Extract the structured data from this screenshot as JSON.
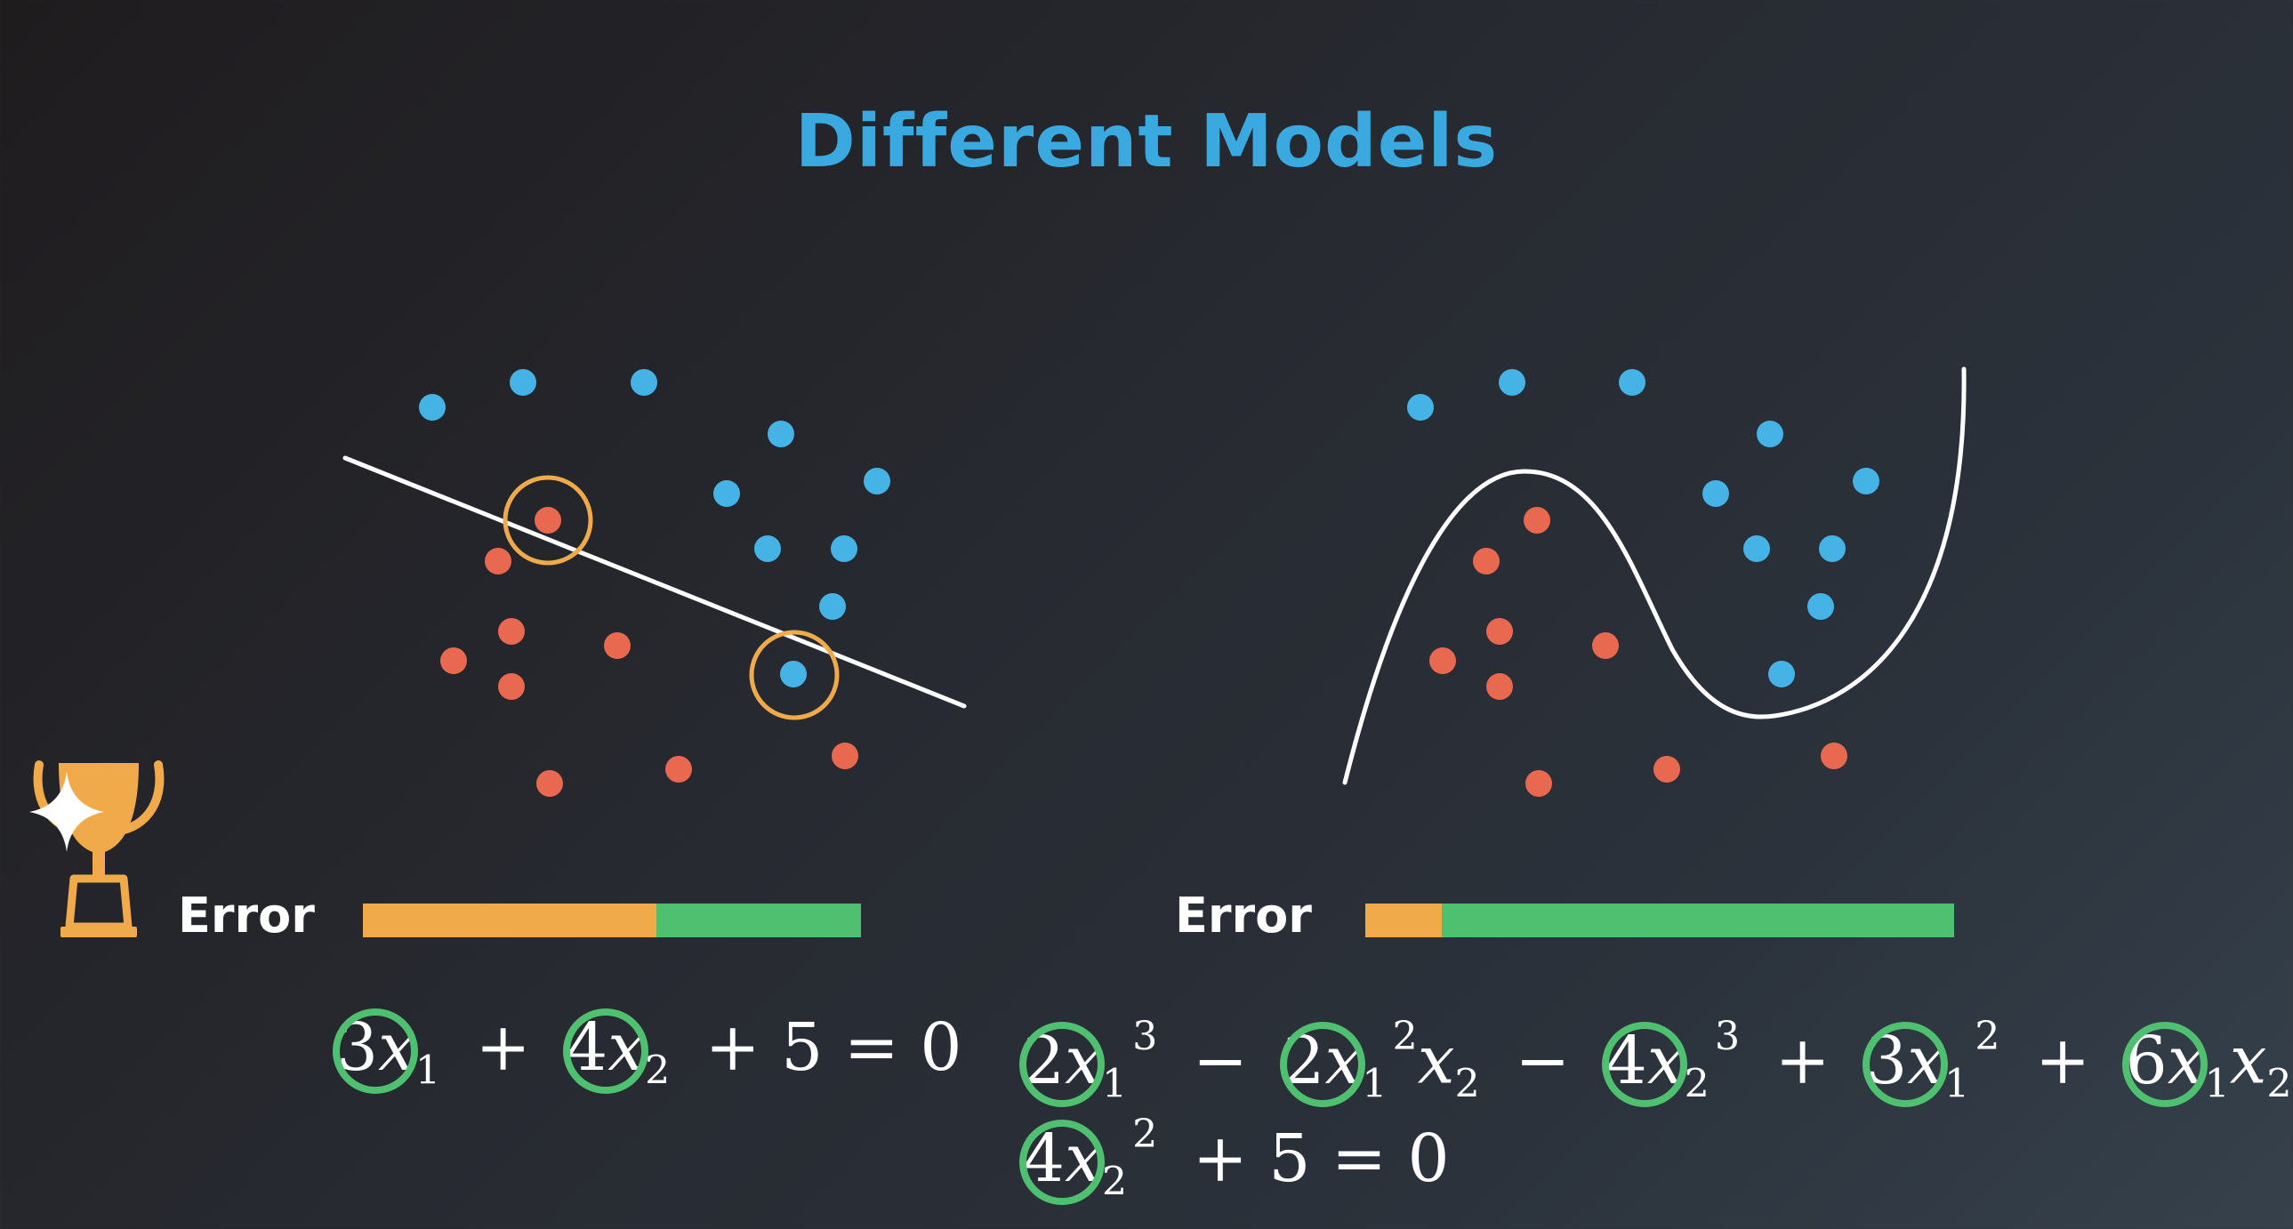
{
  "title": "Different Models",
  "colors": {
    "title": "#3aa9e0",
    "blue_point": "#45b3e6",
    "red_point": "#e8694f",
    "highlight": "#f0aa4a",
    "error_orange": "#f0aa4a",
    "error_green": "#4fbf70",
    "coefficient_ring": "#4fbf70",
    "boundary": "#ffffff"
  },
  "icons": {
    "trophy": "trophy-icon",
    "sparkle": "sparkle-icon"
  },
  "models": [
    {
      "name": "linear",
      "error_label": "Error",
      "error_fraction": 0.59,
      "equation": {
        "c1": "3",
        "v1": "x",
        "s1": "1",
        "op1": "+",
        "c2": "4",
        "v2": "x",
        "s2": "2",
        "tail": "+ 5 = 0"
      }
    },
    {
      "name": "polynomial",
      "error_label": "Error",
      "error_fraction": 0.13,
      "equation": {
        "line1": {
          "c1": "2",
          "v1": "x",
          "s1": "1",
          "p1": "3",
          "op1": "−",
          "c2": "2",
          "v2": "x",
          "s2": "1",
          "p2": "2",
          "v2b": "x",
          "s2b": "2",
          "op2": "−",
          "c3": "4",
          "v3": "x",
          "s3": "2",
          "p3": "3",
          "op3": "+",
          "c4": "3",
          "v4": "x",
          "s4": "1",
          "p4": "2",
          "op4": "+",
          "c5": "6",
          "v5": "x",
          "s5": "1",
          "v5b": "x",
          "s5b": "2",
          "op5": "+"
        },
        "line2": {
          "c6": "4",
          "v6": "x",
          "s6": "2",
          "p6": "2",
          "tail": "+ 5 = 0"
        }
      }
    }
  ]
}
